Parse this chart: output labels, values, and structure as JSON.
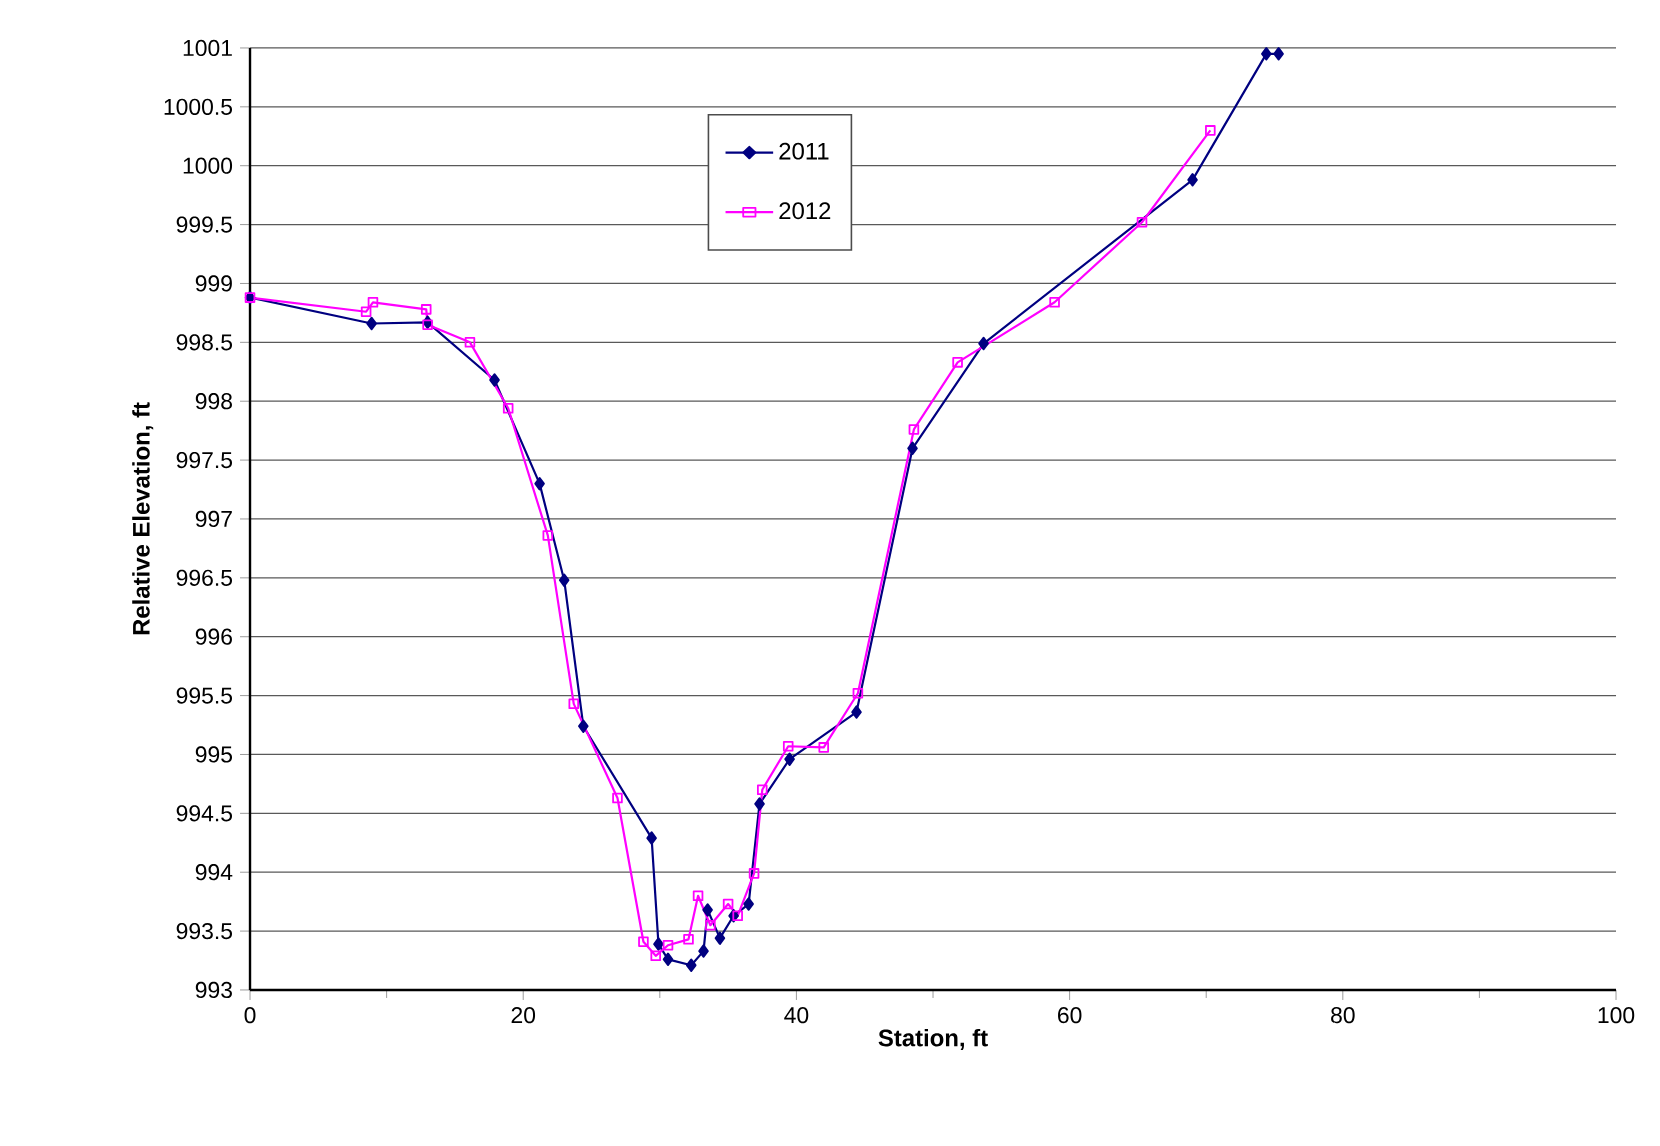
{
  "chart_data": {
    "type": "line",
    "xlabel": "Station, ft",
    "ylabel": "Relative Elevation, ft",
    "xlim": [
      0,
      100
    ],
    "xticks": [
      0,
      20,
      40,
      60,
      80,
      100
    ],
    "ylim": [
      993,
      1001
    ],
    "yticks": [
      993,
      993.5,
      994,
      994.5,
      995,
      995.5,
      996,
      996.5,
      997,
      997.5,
      998,
      998.5,
      999,
      999.5,
      1000,
      1000.5,
      1001
    ],
    "grid": "y",
    "legend": "top",
    "line_style": "solid",
    "series": [
      {
        "name": "2011",
        "color": "#000080",
        "marker": "diamond",
        "x": [
          0,
          8.9,
          13.0,
          17.9,
          21.2,
          23.0,
          24.4,
          29.4,
          29.9,
          30.6,
          32.3,
          33.2,
          33.5,
          34.4,
          35.4,
          36.5,
          37.3,
          39.5,
          44.4,
          48.5,
          53.7,
          69.0,
          74.4,
          75.3
        ],
        "values": [
          998.88,
          998.66,
          998.67,
          998.18,
          997.3,
          996.48,
          995.24,
          994.29,
          993.39,
          993.26,
          993.21,
          993.33,
          993.68,
          993.44,
          993.63,
          993.73,
          994.58,
          994.96,
          995.36,
          997.6,
          998.49,
          999.88,
          1000.95,
          1000.95
        ]
      },
      {
        "name": "2012",
        "color": "#ff00ff",
        "marker": "square",
        "x": [
          0,
          8.5,
          9.0,
          12.9,
          13.0,
          16.1,
          18.9,
          21.8,
          23.7,
          26.9,
          28.8,
          29.7,
          30.6,
          32.1,
          32.8,
          33.7,
          35.0,
          35.7,
          36.9,
          37.5,
          39.4,
          42.0,
          44.5,
          48.6,
          51.8,
          58.9,
          65.3,
          70.3
        ],
        "values": [
          998.88,
          998.76,
          998.84,
          998.78,
          998.65,
          998.5,
          997.94,
          996.86,
          995.43,
          994.63,
          993.41,
          993.29,
          993.38,
          993.43,
          993.8,
          993.55,
          993.73,
          993.63,
          993.99,
          994.7,
          995.07,
          995.06,
          995.52,
          997.76,
          998.33,
          998.84,
          999.52,
          1000.3
        ]
      }
    ]
  }
}
